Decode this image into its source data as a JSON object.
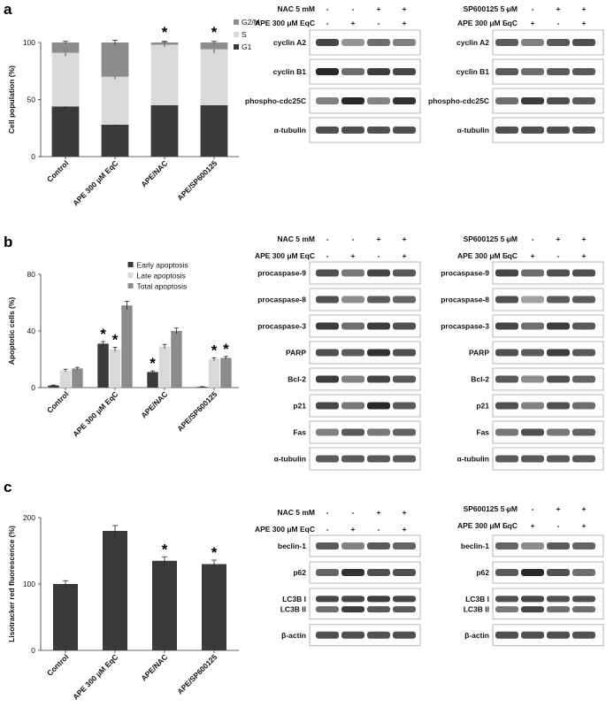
{
  "panels": {
    "a": "a",
    "b": "b",
    "c": "c"
  },
  "chart_data": [
    {
      "type": "bar",
      "stacked": true,
      "categories": [
        "Control",
        "APE 300 μM EqC",
        "APE/NAC",
        "APE/SP600125"
      ],
      "ylabel": "Cell population (%)",
      "ylim": [
        0,
        100
      ],
      "yticks": [
        0,
        50,
        100
      ],
      "legend_position": "top-right",
      "series": [
        {
          "name": "G1",
          "color": "#3a3a3a",
          "values": [
            44,
            28,
            45,
            45
          ],
          "errors": [
            2,
            2,
            2,
            2
          ]
        },
        {
          "name": "S",
          "color": "#d9d9d9",
          "values": [
            47,
            42,
            53,
            49
          ],
          "errors": [
            3,
            2,
            2,
            3
          ]
        },
        {
          "name": "G2/M",
          "color": "#8c8c8c",
          "values": [
            9,
            30,
            2,
            6
          ],
          "errors": [
            1,
            2,
            1,
            1
          ]
        }
      ],
      "significance": [
        "",
        "",
        "*",
        "*"
      ]
    },
    {
      "type": "bar",
      "categories": [
        "Control",
        "APE 300 μM EqC",
        "APE/NAC",
        "APE/SP600125"
      ],
      "ylabel": "Apoptotic cells (%)",
      "ylim": [
        0,
        80
      ],
      "yticks": [
        0,
        40,
        80
      ],
      "legend_position": "top-right",
      "series": [
        {
          "name": "Early apoptosis",
          "color": "#3a3a3a",
          "values": [
            1.5,
            31,
            11,
            0.5
          ],
          "errors": [
            0.3,
            1.5,
            0.8,
            0.2
          ],
          "significance": [
            "",
            "*",
            "*",
            ""
          ]
        },
        {
          "name": "Late apoptosis",
          "color": "#d9d9d9",
          "values": [
            12,
            27,
            29,
            20
          ],
          "errors": [
            1,
            1.5,
            1.5,
            1
          ],
          "significance": [
            "",
            "*",
            "",
            "*"
          ]
        },
        {
          "name": "Total apoptosis",
          "color": "#8c8c8c",
          "values": [
            13.5,
            58,
            40,
            21
          ],
          "errors": [
            0.8,
            3,
            2,
            1
          ],
          "significance": [
            "",
            "",
            "",
            "*"
          ]
        }
      ]
    },
    {
      "type": "bar",
      "categories": [
        "Control",
        "APE 300 μM EqC",
        "APE/NAC",
        "APE/SP600125"
      ],
      "ylabel": "Lisotracker red fluorescence (%)",
      "ylim": [
        0,
        200
      ],
      "yticks": [
        0,
        100,
        200
      ],
      "series": [
        {
          "color": "#3a3a3a",
          "values": [
            100,
            180,
            135,
            130
          ],
          "errors": [
            5,
            8,
            6,
            6
          ]
        }
      ],
      "significance": [
        "",
        "",
        "*",
        "*"
      ]
    }
  ],
  "blots": {
    "a_left": {
      "treatments": [
        {
          "label": "NAC 5 mM",
          "signs": [
            "-",
            "-",
            "+",
            "+"
          ]
        },
        {
          "label": "APE 300 μM EqC",
          "signs": [
            "-",
            "+",
            "-",
            "+"
          ]
        }
      ],
      "bands": [
        "cyclin A2",
        "cyclin B1",
        "phospho-cdc25C",
        "α-tubulin"
      ],
      "intensity": [
        [
          0.8,
          0.4,
          0.6,
          0.5
        ],
        [
          0.95,
          0.6,
          0.85,
          0.8
        ],
        [
          0.5,
          0.95,
          0.5,
          0.9
        ],
        [
          0.75,
          0.75,
          0.75,
          0.75
        ]
      ]
    },
    "a_right": {
      "treatments": [
        {
          "label": "SP600125 5 μM",
          "signs": [
            "-",
            "-",
            "+",
            "+"
          ]
        },
        {
          "label": "APE 300 μM EqC",
          "signs": [
            "-",
            "+",
            "-",
            "+"
          ]
        }
      ],
      "bands": [
        "cyclin A2",
        "cyclin B1",
        "phospho-cdc25C",
        "α-tubulin"
      ],
      "intensity": [
        [
          0.7,
          0.5,
          0.7,
          0.75
        ],
        [
          0.7,
          0.6,
          0.7,
          0.7
        ],
        [
          0.6,
          0.85,
          0.75,
          0.7
        ],
        [
          0.75,
          0.75,
          0.75,
          0.75
        ]
      ]
    },
    "b_left": {
      "treatments": [
        {
          "label": "NAC 5 mM",
          "signs": [
            "-",
            "-",
            "+",
            "+"
          ]
        },
        {
          "label": "APE 300 μM EqC",
          "signs": [
            "-",
            "+",
            "-",
            "+"
          ]
        }
      ],
      "bands": [
        "procaspase-9",
        "procaspase-8",
        "procaspase-3",
        "PARP",
        "Bcl-2",
        "p21",
        "Fas",
        "α-tubulin"
      ],
      "intensity": [
        [
          0.75,
          0.55,
          0.8,
          0.7
        ],
        [
          0.75,
          0.45,
          0.7,
          0.65
        ],
        [
          0.85,
          0.6,
          0.85,
          0.75
        ],
        [
          0.75,
          0.7,
          0.9,
          0.75
        ],
        [
          0.85,
          0.5,
          0.8,
          0.7
        ],
        [
          0.8,
          0.55,
          0.95,
          0.7
        ],
        [
          0.5,
          0.7,
          0.55,
          0.65
        ],
        [
          0.7,
          0.7,
          0.7,
          0.7
        ]
      ]
    },
    "b_right": {
      "treatments": [
        {
          "label": "SP600125 5 μM",
          "signs": [
            "-",
            "-",
            "+",
            "+"
          ]
        },
        {
          "label": "APE 300 μM EqC",
          "signs": [
            "-",
            "+",
            "-",
            "+"
          ]
        }
      ],
      "bands": [
        "procaspase-9",
        "procaspase-8",
        "procaspase-3",
        "PARP",
        "Bcl-2",
        "p21",
        "Fas",
        "α-tubulin"
      ],
      "intensity": [
        [
          0.8,
          0.6,
          0.75,
          0.75
        ],
        [
          0.75,
          0.35,
          0.7,
          0.7
        ],
        [
          0.8,
          0.6,
          0.85,
          0.7
        ],
        [
          0.75,
          0.7,
          0.85,
          0.7
        ],
        [
          0.7,
          0.45,
          0.75,
          0.65
        ],
        [
          0.75,
          0.5,
          0.75,
          0.6
        ],
        [
          0.55,
          0.75,
          0.55,
          0.65
        ],
        [
          0.7,
          0.7,
          0.7,
          0.7
        ]
      ]
    },
    "c_left": {
      "treatments": [
        {
          "label": "NAC 5 mM",
          "signs": [
            "-",
            "-",
            "+",
            "+"
          ]
        },
        {
          "label": "APE 300 μM EqC",
          "signs": [
            "-",
            "+",
            "-",
            "+"
          ]
        }
      ],
      "bands": [
        "beclin-1",
        "p62",
        "LC3B I",
        "LC3B II",
        "β-actin"
      ],
      "intensity": [
        [
          0.7,
          0.5,
          0.7,
          0.65
        ],
        [
          0.65,
          0.9,
          0.75,
          0.75
        ],
        [
          0.8,
          0.8,
          0.85,
          0.8
        ],
        [
          0.6,
          0.85,
          0.7,
          0.7
        ],
        [
          0.75,
          0.75,
          0.75,
          0.75
        ]
      ]
    },
    "c_right": {
      "treatments": [
        {
          "label": "SP600125 5 μM",
          "signs": [
            "-",
            "-",
            "+",
            "+"
          ]
        },
        {
          "label": "APE 300 μM EqC",
          "signs": [
            "-",
            "+",
            "-",
            "+"
          ]
        }
      ],
      "bands": [
        "beclin-1",
        "p62",
        "LC3B I",
        "LC3B II",
        "β-actin"
      ],
      "intensity": [
        [
          0.65,
          0.45,
          0.7,
          0.65
        ],
        [
          0.7,
          0.95,
          0.75,
          0.6
        ],
        [
          0.75,
          0.8,
          0.75,
          0.75
        ],
        [
          0.55,
          0.8,
          0.6,
          0.6
        ],
        [
          0.75,
          0.75,
          0.75,
          0.75
        ]
      ]
    }
  }
}
